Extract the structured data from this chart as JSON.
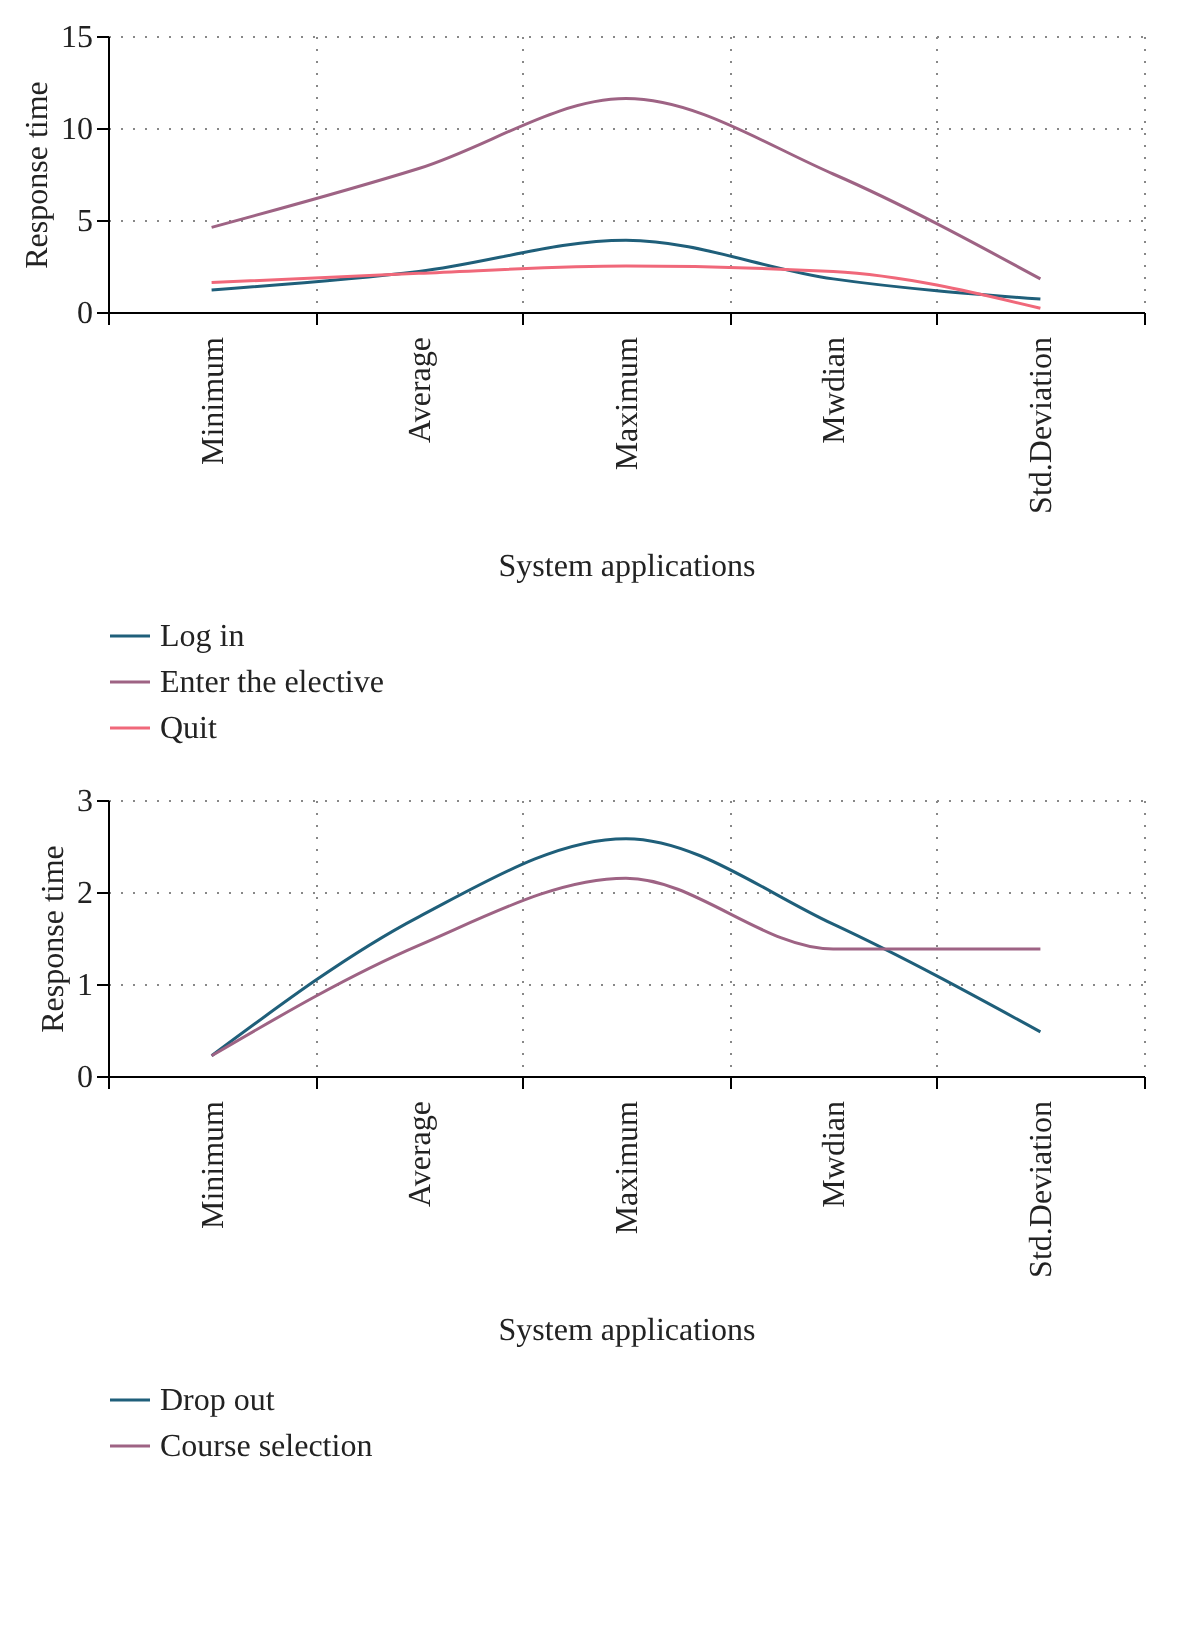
{
  "chart_data": [
    {
      "type": "line",
      "categories": [
        "Minimum",
        "Average",
        "Maximum",
        "Mwdian",
        "Std.Deviation"
      ],
      "xlabel": "System applications",
      "ylabel": "Response time",
      "ylim": [
        0,
        15
      ],
      "yticks": [
        0,
        5,
        10,
        15
      ],
      "grid": true,
      "legend": "bottom",
      "marker": "none",
      "line_style": "solid",
      "series": [
        {
          "name": "Log in",
          "color": "#1f5f7a",
          "values": [
            1.2,
            2.2,
            3.9,
            1.8,
            0.7
          ]
        },
        {
          "name": "Enter the elective",
          "color": "#9e6384",
          "values": [
            4.6,
            7.8,
            11.6,
            7.5,
            1.8
          ]
        },
        {
          "name": "Quit",
          "color": "#f0687a",
          "values": [
            1.6,
            2.1,
            2.5,
            2.2,
            0.2
          ]
        }
      ]
    },
    {
      "type": "line",
      "categories": [
        "Minimum",
        "Average",
        "Maximum",
        "Mwdian",
        "Std.Deviation"
      ],
      "xlabel": "System applications",
      "ylabel": "Response time",
      "ylim": [
        0,
        3
      ],
      "yticks": [
        0,
        1,
        2,
        3
      ],
      "grid": true,
      "legend": "bottom",
      "marker": "none",
      "line_style": "solid",
      "series": [
        {
          "name": "Drop out",
          "color": "#1f5f7a",
          "values": [
            0.22,
            1.73,
            2.58,
            1.65,
            0.48
          ]
        },
        {
          "name": "Course selection",
          "color": "#9e6384",
          "values": [
            0.22,
            1.42,
            2.15,
            1.38,
            1.38
          ]
        }
      ]
    }
  ]
}
